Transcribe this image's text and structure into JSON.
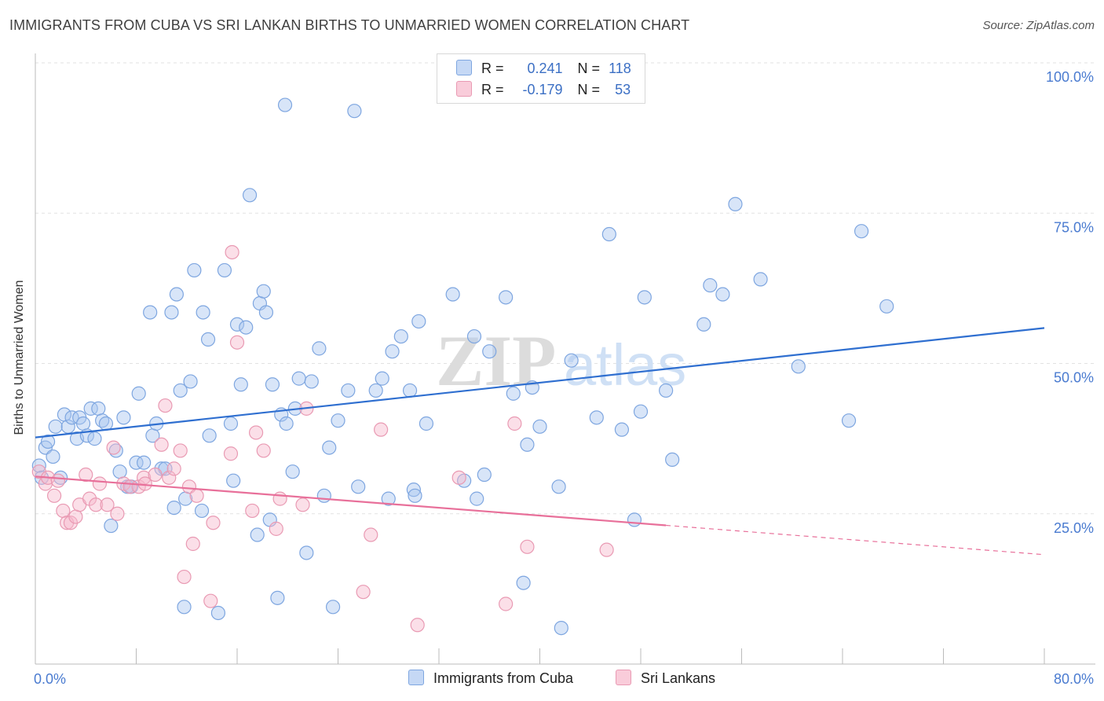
{
  "title": "IMMIGRANTS FROM CUBA VS SRI LANKAN BIRTHS TO UNMARRIED WOMEN CORRELATION CHART",
  "source": "Source: ZipAtlas.com",
  "watermark": {
    "zip": "ZIP",
    "atlas": "atlas"
  },
  "legend": {
    "r_label": "R =",
    "n_label": "N =",
    "cuba": {
      "r": "0.241",
      "n": "118",
      "name": "Immigrants from Cuba"
    },
    "sri": {
      "r": "-0.179",
      "n": "53",
      "name": "Sri Lankans"
    }
  },
  "colors": {
    "cuba_fill": "#a9c6f0",
    "cuba_stroke": "#7ea6e0",
    "cuba_line": "#2f6fd0",
    "sri_fill": "#f6b8cb",
    "sri_stroke": "#e99ab3",
    "sri_line": "#e8709a",
    "axis_text": "#4a7bd0"
  },
  "chart_data": {
    "type": "scatter",
    "title": "IMMIGRANTS FROM CUBA VS SRI LANKAN BIRTHS TO UNMARRIED WOMEN CORRELATION CHART",
    "xlabel": "",
    "ylabel": "Births to Unmarried Women",
    "xlim": [
      0,
      80
    ],
    "ylim": [
      0,
      100
    ],
    "x_tick_labels": [
      "0.0%",
      "80.0%"
    ],
    "y_tick_labels": [
      "100.0%",
      "75.0%",
      "50.0%",
      "25.0%"
    ],
    "y_ticks": [
      100,
      75,
      50,
      25
    ],
    "grid": true,
    "legend_position": "top-center",
    "series": [
      {
        "name": "Immigrants from Cuba",
        "trend": {
          "x": [
            0,
            80
          ],
          "y": [
            37.7,
            55.9
          ],
          "dashed_from": null
        },
        "points": [
          [
            0.3,
            33
          ],
          [
            0.5,
            31
          ],
          [
            0.8,
            36
          ],
          [
            1.0,
            37
          ],
          [
            1.4,
            34.5
          ],
          [
            1.6,
            39.5
          ],
          [
            2.0,
            31
          ],
          [
            2.3,
            41.5
          ],
          [
            2.6,
            39.5
          ],
          [
            2.9,
            41
          ],
          [
            3.3,
            37.5
          ],
          [
            3.5,
            41
          ],
          [
            3.8,
            40
          ],
          [
            4.1,
            38
          ],
          [
            4.4,
            42.5
          ],
          [
            4.7,
            37.5
          ],
          [
            5.0,
            42.5
          ],
          [
            5.3,
            40.5
          ],
          [
            5.6,
            40
          ],
          [
            6.0,
            23
          ],
          [
            6.4,
            35.5
          ],
          [
            6.7,
            32
          ],
          [
            7.0,
            41
          ],
          [
            7.3,
            29.5
          ],
          [
            7.6,
            29.5
          ],
          [
            8.0,
            33.5
          ],
          [
            8.2,
            45
          ],
          [
            8.6,
            33.5
          ],
          [
            9.1,
            58.5
          ],
          [
            9.3,
            38
          ],
          [
            9.6,
            40
          ],
          [
            10.0,
            32.5
          ],
          [
            10.3,
            32.5
          ],
          [
            10.8,
            58.5
          ],
          [
            11.0,
            26
          ],
          [
            11.2,
            61.5
          ],
          [
            11.5,
            45.5
          ],
          [
            11.8,
            9.5
          ],
          [
            11.9,
            27.5
          ],
          [
            12.3,
            47
          ],
          [
            12.6,
            65.5
          ],
          [
            13.2,
            25.5
          ],
          [
            13.3,
            58.5
          ],
          [
            13.7,
            54
          ],
          [
            13.8,
            38
          ],
          [
            14.5,
            8.5
          ],
          [
            15.0,
            65.5
          ],
          [
            15.5,
            40
          ],
          [
            15.7,
            30.5
          ],
          [
            16.0,
            56.5
          ],
          [
            16.3,
            46.5
          ],
          [
            16.7,
            56
          ],
          [
            17.0,
            78
          ],
          [
            17.6,
            21.5
          ],
          [
            17.8,
            60
          ],
          [
            18.1,
            62
          ],
          [
            18.3,
            58.5
          ],
          [
            18.6,
            24
          ],
          [
            18.8,
            46.5
          ],
          [
            19.2,
            11
          ],
          [
            19.5,
            41.5
          ],
          [
            19.8,
            93
          ],
          [
            19.9,
            40
          ],
          [
            20.4,
            32
          ],
          [
            20.6,
            42.5
          ],
          [
            20.9,
            47.5
          ],
          [
            21.5,
            18.5
          ],
          [
            21.9,
            47
          ],
          [
            22.5,
            52.5
          ],
          [
            22.9,
            28
          ],
          [
            23.3,
            36
          ],
          [
            23.6,
            9.5
          ],
          [
            24.0,
            40.5
          ],
          [
            24.8,
            45.5
          ],
          [
            25.3,
            92
          ],
          [
            25.6,
            29.5
          ],
          [
            27.0,
            45.5
          ],
          [
            27.5,
            47.5
          ],
          [
            28.0,
            27.5
          ],
          [
            28.3,
            52
          ],
          [
            29.0,
            54.5
          ],
          [
            29.7,
            45.5
          ],
          [
            30.0,
            29
          ],
          [
            30.1,
            28
          ],
          [
            30.4,
            57
          ],
          [
            31.0,
            40
          ],
          [
            33.1,
            61.5
          ],
          [
            34.0,
            30.5
          ],
          [
            34.8,
            54.5
          ],
          [
            35.0,
            27.5
          ],
          [
            35.6,
            31.5
          ],
          [
            36.0,
            52
          ],
          [
            37.3,
            61
          ],
          [
            37.9,
            45
          ],
          [
            38.7,
            13.5
          ],
          [
            39.0,
            36.5
          ],
          [
            39.4,
            46
          ],
          [
            40.0,
            39.5
          ],
          [
            41.5,
            29.5
          ],
          [
            41.7,
            6
          ],
          [
            42.5,
            50.5
          ],
          [
            44.5,
            41
          ],
          [
            45.5,
            71.5
          ],
          [
            46.5,
            39
          ],
          [
            47.5,
            24
          ],
          [
            48.0,
            42
          ],
          [
            48.3,
            61
          ],
          [
            50.0,
            45.5
          ],
          [
            50.5,
            34
          ],
          [
            53.0,
            56.5
          ],
          [
            53.5,
            63
          ],
          [
            54.5,
            61.5
          ],
          [
            55.5,
            76.5
          ],
          [
            57.5,
            64
          ],
          [
            60.5,
            49.5
          ],
          [
            64.5,
            40.5
          ],
          [
            65.5,
            72
          ],
          [
            67.5,
            59.5
          ]
        ]
      },
      {
        "name": "Sri Lankans",
        "trend": {
          "x": [
            0,
            80
          ],
          "y": [
            31.2,
            18.2
          ],
          "dashed_from": 50
        },
        "points": [
          [
            0.3,
            32
          ],
          [
            0.8,
            30
          ],
          [
            1.0,
            31
          ],
          [
            1.5,
            28
          ],
          [
            1.8,
            30.5
          ],
          [
            2.2,
            25.5
          ],
          [
            2.5,
            23.5
          ],
          [
            2.8,
            23.5
          ],
          [
            3.2,
            24.5
          ],
          [
            3.5,
            26.5
          ],
          [
            4.0,
            31.5
          ],
          [
            4.3,
            27.5
          ],
          [
            4.8,
            26.5
          ],
          [
            5.1,
            30
          ],
          [
            5.7,
            26.5
          ],
          [
            6.2,
            36
          ],
          [
            6.5,
            25
          ],
          [
            7.0,
            30
          ],
          [
            7.5,
            29.5
          ],
          [
            8.2,
            29.5
          ],
          [
            8.6,
            31
          ],
          [
            8.7,
            30
          ],
          [
            9.5,
            31.5
          ],
          [
            10.0,
            36.5
          ],
          [
            10.3,
            43
          ],
          [
            10.6,
            31
          ],
          [
            11.0,
            32.5
          ],
          [
            11.5,
            35.5
          ],
          [
            11.8,
            14.5
          ],
          [
            12.2,
            29.5
          ],
          [
            12.5,
            20
          ],
          [
            12.8,
            28
          ],
          [
            13.9,
            10.5
          ],
          [
            14.1,
            23.5
          ],
          [
            15.5,
            35
          ],
          [
            15.6,
            68.5
          ],
          [
            16.0,
            53.5
          ],
          [
            17.2,
            25.5
          ],
          [
            17.5,
            38.5
          ],
          [
            18.1,
            35.5
          ],
          [
            19.1,
            22.5
          ],
          [
            19.4,
            27.5
          ],
          [
            21.5,
            42.5
          ],
          [
            21.2,
            26.5
          ],
          [
            26.0,
            12
          ],
          [
            26.6,
            21.5
          ],
          [
            27.4,
            39
          ],
          [
            30.3,
            6.5
          ],
          [
            33.6,
            31
          ],
          [
            37.3,
            10
          ],
          [
            38.0,
            40
          ],
          [
            39.0,
            19.5
          ],
          [
            45.3,
            19
          ]
        ]
      }
    ]
  }
}
